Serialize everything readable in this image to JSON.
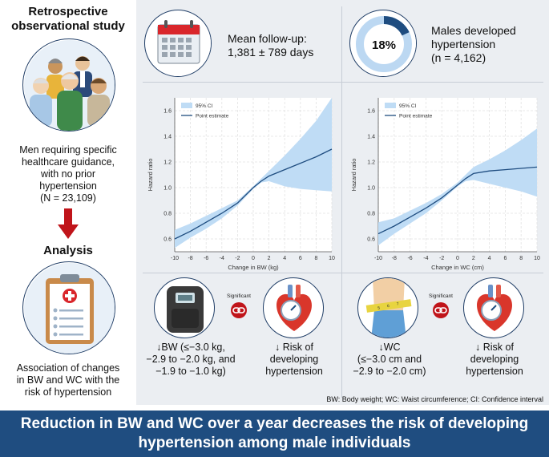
{
  "left": {
    "study_title": [
      "Retrospective",
      "observational study"
    ],
    "population_text": [
      "Men requiring specific",
      "healthcare guidance,",
      "with no prior",
      "hypertension",
      "(N = 23,109)"
    ],
    "analysis_title": "Analysis",
    "analysis_text": [
      "Association of changes",
      "in BW and WC with the",
      "risk of hypertension"
    ]
  },
  "followup": {
    "label": "Mean follow-up:",
    "value": "1,381 ± 789 days"
  },
  "hypertension_rate": {
    "percent_label": "18%",
    "percent_value": 18,
    "text": [
      "Males developed",
      "hypertension",
      "(n = 4,162)"
    ]
  },
  "chart_data": [
    {
      "type": "line",
      "xlabel": "Change in BW (kg)",
      "ylabel": "Hazard ratio",
      "xlim": [
        -10,
        10
      ],
      "ylim": [
        0.5,
        1.7
      ],
      "x_ticks": [
        "-10",
        "-8",
        "-6",
        "-4",
        "-2",
        "0",
        "2",
        "4",
        "6",
        "8",
        "10"
      ],
      "y_ticks": [
        "0.6",
        "0.8",
        "1.0",
        "1.2",
        "1.4",
        "1.6"
      ],
      "legend": [
        "95% CI",
        "Point estimate"
      ],
      "x": [
        -10,
        -8,
        -6,
        -4,
        -2,
        0,
        1,
        2,
        4,
        6,
        8,
        10
      ],
      "point_estimate": [
        0.6,
        0.66,
        0.73,
        0.8,
        0.88,
        1.0,
        1.05,
        1.09,
        1.14,
        1.19,
        1.24,
        1.3
      ],
      "ci_lower": [
        0.53,
        0.61,
        0.68,
        0.76,
        0.86,
        0.99,
        1.04,
        1.05,
        1.01,
        0.99,
        0.98,
        0.97
      ],
      "ci_upper": [
        0.67,
        0.72,
        0.78,
        0.84,
        0.9,
        1.01,
        1.07,
        1.13,
        1.25,
        1.38,
        1.52,
        1.7
      ]
    },
    {
      "type": "line",
      "xlabel": "Change in WC (cm)",
      "ylabel": "Hazard ratio",
      "xlim": [
        -10,
        10
      ],
      "ylim": [
        0.5,
        1.7
      ],
      "x_ticks": [
        "-10",
        "-8",
        "-6",
        "-4",
        "-2",
        "0",
        "2",
        "4",
        "6",
        "8",
        "10"
      ],
      "y_ticks": [
        "0.6",
        "0.8",
        "1.0",
        "1.2",
        "1.4",
        "1.6"
      ],
      "legend": [
        "95% CI",
        "Point estimate"
      ],
      "x": [
        -10,
        -8,
        -6,
        -4,
        -2,
        0,
        1,
        2,
        4,
        6,
        8,
        10
      ],
      "point_estimate": [
        0.64,
        0.7,
        0.77,
        0.84,
        0.92,
        1.02,
        1.07,
        1.11,
        1.13,
        1.14,
        1.15,
        1.16
      ],
      "ci_lower": [
        0.55,
        0.64,
        0.72,
        0.8,
        0.9,
        1.01,
        1.05,
        1.06,
        1.03,
        1.0,
        0.97,
        0.93
      ],
      "ci_upper": [
        0.73,
        0.76,
        0.82,
        0.88,
        0.95,
        1.04,
        1.1,
        1.16,
        1.22,
        1.29,
        1.37,
        1.46
      ]
    }
  ],
  "bw_result": {
    "significant": "Significant",
    "change_text": [
      "↓BW (≤−3.0 kg,",
      "−2.9 to −2.0 kg, and",
      "−1.9 to −1.0 kg)"
    ],
    "risk_text": [
      "↓ Risk of",
      "developing",
      "hypertension"
    ]
  },
  "wc_result": {
    "significant": "Significant",
    "change_text": [
      "↓WC",
      "(≤−3.0 cm and",
      "−2.9 to −2.0 cm)"
    ],
    "risk_text": [
      "↓ Risk of",
      "developing",
      "hypertension"
    ]
  },
  "tape_marks": [
    "5",
    "6",
    "7"
  ],
  "footnote": "BW: Body weight; WC: Waist circumference; CI: Confidence interval",
  "conclusion": [
    "Reduction in BW and WC over a year decreases the risk of developing",
    "hypertension among male individuals"
  ],
  "colors": {
    "navy": "#1f4d80",
    "ci_fill": "#bfdcf5",
    "line": "#1f4d80",
    "arrow": "#c0141a",
    "panel": "#ebeef2"
  }
}
